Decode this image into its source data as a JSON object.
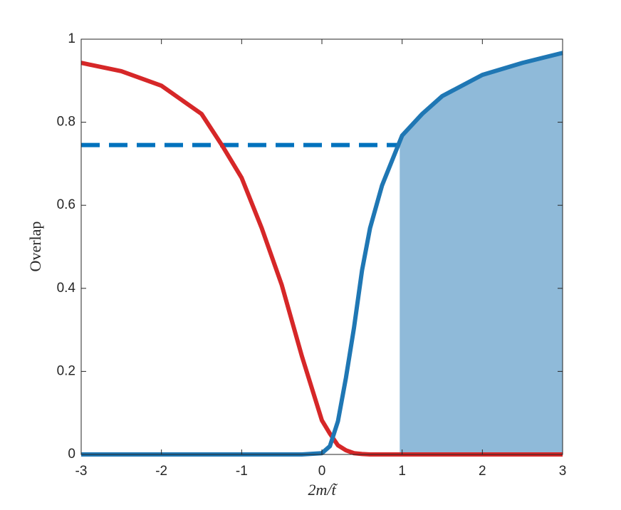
{
  "chart_data": {
    "type": "line",
    "xlabel": "2m/t̃",
    "ylabel": "Overlap",
    "x": [
      -3,
      -2.5,
      -2,
      -1.5,
      -1.25,
      -1,
      -0.75,
      -0.5,
      -0.25,
      0,
      0.1,
      0.2,
      0.3,
      0.4,
      0.5,
      0.6,
      0.75,
      1,
      1.25,
      1.5,
      2,
      2.5,
      3
    ],
    "series": [
      {
        "color": "#d62728",
        "values": [
          0.943,
          0.923,
          0.888,
          0.82,
          0.746,
          0.666,
          0.545,
          0.408,
          0.237,
          0.082,
          0.05,
          0.022,
          0.01,
          0.003,
          0.001,
          0,
          0,
          0,
          0,
          0,
          0,
          0,
          0
        ]
      },
      {
        "color": "#1f77b4",
        "values": [
          0,
          0,
          0,
          0,
          0,
          0,
          0,
          0,
          0,
          0.003,
          0.02,
          0.08,
          0.185,
          0.305,
          0.443,
          0.545,
          0.648,
          0.768,
          0.82,
          0.863,
          0.914,
          0.943,
          0.967
        ]
      }
    ],
    "reference_line": {
      "color": "#0072bd",
      "x": [
        -3,
        0.97
      ],
      "values": [
        0.745,
        0.745
      ]
    },
    "shade": {
      "color": "#8fbad9",
      "from_x": 0.97,
      "series": 1
    },
    "xlim": [
      -3,
      3
    ],
    "ylim": [
      0,
      1
    ],
    "xticks": [
      -3,
      -2,
      -1,
      0,
      1,
      2,
      3
    ],
    "yticks": [
      0,
      0.2,
      0.4,
      0.6,
      0.8,
      1
    ]
  }
}
